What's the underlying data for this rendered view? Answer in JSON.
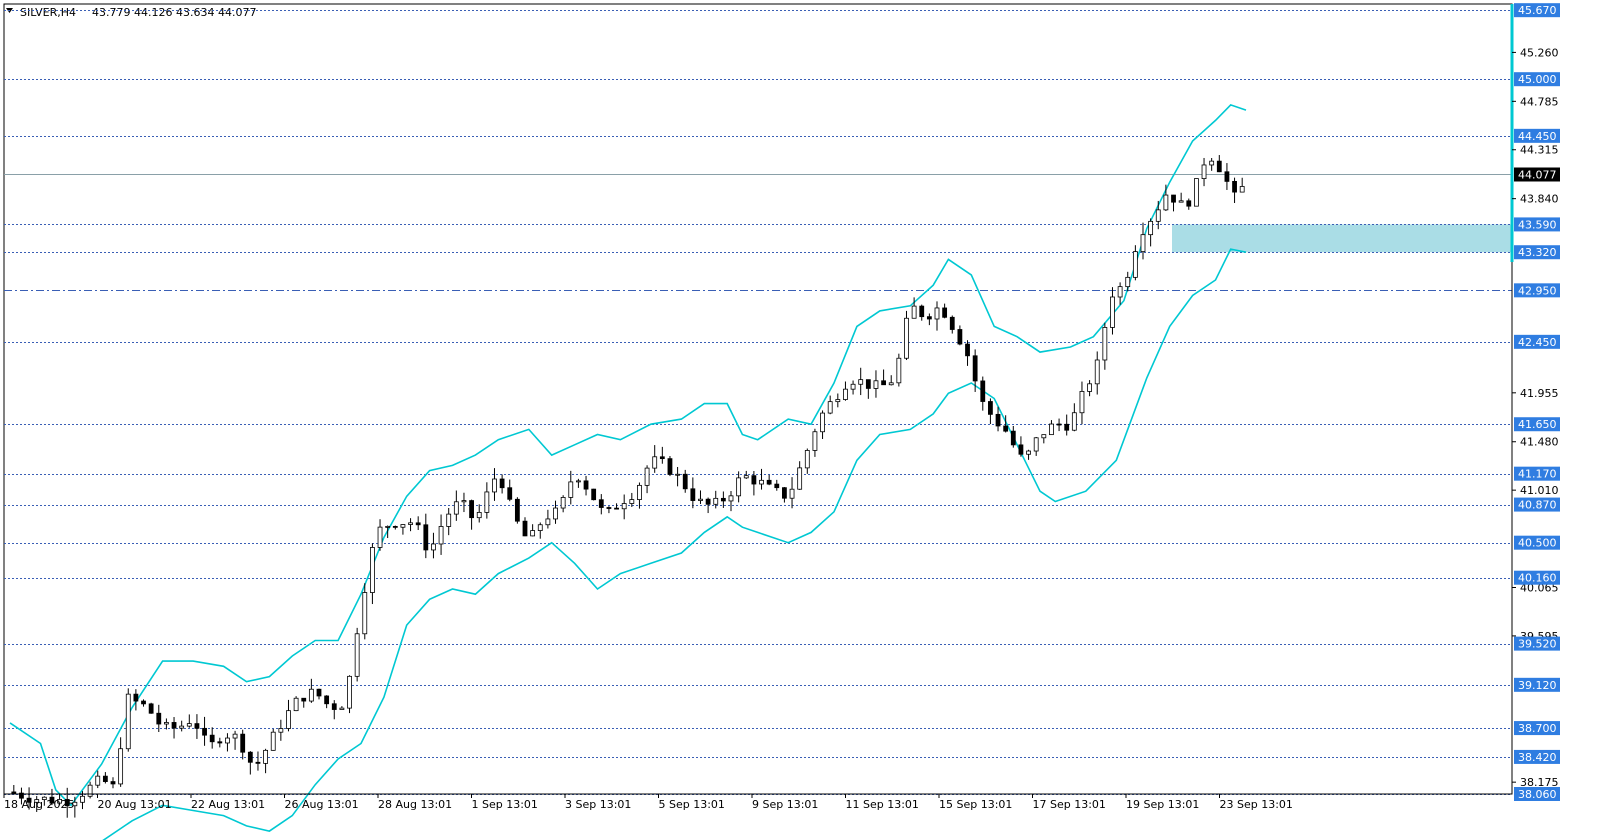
{
  "header": {
    "symbol": "SILVER,H4",
    "ohlc": "43.779 44.126 43.634 44.077"
  },
  "colors": {
    "band": "#00c8d2",
    "level": "#3a5fb5",
    "level_box": "#2f7de1",
    "zone": "#aadde6",
    "current_price_box": "#000000",
    "grid_frame": "#000000"
  },
  "chart_data": {
    "type": "candlestick",
    "instrument": "SILVER",
    "timeframe": "H4",
    "y_range": [
      38.06,
      45.73
    ],
    "price_ticks": [
      "45.260",
      "44.785",
      "44.315",
      "43.840",
      "41.955",
      "41.480",
      "41.010",
      "40.065",
      "39.595",
      "38.175"
    ],
    "x_tick_labels": [
      "18 Aug 2025",
      "20 Aug 13:01",
      "22 Aug 13:01",
      "26 Aug 13:01",
      "28 Aug 13:01",
      "1 Sep 13:01",
      "3 Sep 13:01",
      "5 Sep 13:01",
      "9 Sep 13:01",
      "11 Sep 13:01",
      "15 Sep 13:01",
      "17 Sep 13:01",
      "19 Sep 13:01",
      "23 Sep 13:01"
    ],
    "levels": [
      {
        "price": 45.67,
        "label": "45.670",
        "style": "dotted"
      },
      {
        "price": 45.0,
        "label": "45.000",
        "style": "dotted"
      },
      {
        "price": 44.45,
        "label": "44.450",
        "style": "dotted"
      },
      {
        "price": 43.59,
        "label": "43.590",
        "style": "dotted"
      },
      {
        "price": 43.32,
        "label": "43.320",
        "style": "dotted"
      },
      {
        "price": 42.95,
        "label": "42.950",
        "style": "dashdot"
      },
      {
        "price": 42.45,
        "label": "42.450",
        "style": "dotted"
      },
      {
        "price": 41.65,
        "label": "41.650",
        "style": "dotted"
      },
      {
        "price": 41.17,
        "label": "41.170",
        "style": "dotted"
      },
      {
        "price": 40.87,
        "label": "40.870",
        "style": "dotted"
      },
      {
        "price": 40.5,
        "label": "40.500",
        "style": "dotted"
      },
      {
        "price": 40.16,
        "label": "40.160",
        "style": "dotted"
      },
      {
        "price": 39.52,
        "label": "39.520",
        "style": "dotted"
      },
      {
        "price": 39.12,
        "label": "39.120",
        "style": "dotted"
      },
      {
        "price": 38.7,
        "label": "38.700",
        "style": "dotted"
      },
      {
        "price": 38.42,
        "label": "38.420",
        "style": "dotted"
      },
      {
        "price": 38.06,
        "label": "38.060",
        "style": "dotted"
      }
    ],
    "current_price": {
      "price": 44.077,
      "label": "44.077"
    },
    "zone": {
      "from": 43.32,
      "to": 43.59
    },
    "close_path": [
      [
        0,
        38.08
      ],
      [
        6,
        38.02
      ],
      [
        12,
        38.0
      ],
      [
        16,
        38.0
      ],
      [
        20,
        38.1
      ],
      [
        24,
        38.2
      ],
      [
        28,
        38.1
      ],
      [
        30,
        39.0
      ],
      [
        36,
        38.9
      ],
      [
        40,
        38.7
      ],
      [
        44,
        38.7
      ],
      [
        48,
        38.8
      ],
      [
        52,
        38.5
      ],
      [
        56,
        38.65
      ],
      [
        60,
        38.6
      ],
      [
        64,
        38.3
      ],
      [
        68,
        38.55
      ],
      [
        72,
        38.8
      ],
      [
        76,
        39.0
      ],
      [
        80,
        39.05
      ],
      [
        84,
        38.9
      ],
      [
        88,
        38.95
      ],
      [
        92,
        39.9
      ],
      [
        96,
        40.6
      ],
      [
        100,
        40.7
      ],
      [
        106,
        40.7
      ],
      [
        110,
        40.4
      ],
      [
        114,
        40.75
      ],
      [
        118,
        40.9
      ],
      [
        122,
        40.7
      ],
      [
        126,
        41.05
      ],
      [
        128,
        41.2
      ],
      [
        132,
        40.75
      ],
      [
        136,
        40.5
      ],
      [
        140,
        40.75
      ],
      [
        144,
        40.8
      ],
      [
        148,
        41.2
      ],
      [
        152,
        41.0
      ],
      [
        156,
        40.75
      ],
      [
        160,
        40.9
      ],
      [
        164,
        41.0
      ],
      [
        168,
        41.3
      ],
      [
        172,
        41.25
      ],
      [
        176,
        41.1
      ],
      [
        180,
        40.9
      ],
      [
        184,
        40.85
      ],
      [
        188,
        40.95
      ],
      [
        192,
        41.15
      ],
      [
        196,
        41.1
      ],
      [
        200,
        41.0
      ],
      [
        204,
        40.95
      ],
      [
        208,
        41.3
      ],
      [
        212,
        41.7
      ],
      [
        216,
        41.9
      ],
      [
        220,
        42.1
      ],
      [
        224,
        42.05
      ],
      [
        228,
        42.0
      ],
      [
        232,
        42.1
      ],
      [
        236,
        42.8
      ],
      [
        240,
        42.7
      ],
      [
        244,
        42.8
      ],
      [
        248,
        42.55
      ],
      [
        252,
        42.25
      ],
      [
        254,
        41.9
      ],
      [
        258,
        41.7
      ],
      [
        262,
        41.55
      ],
      [
        264,
        41.35
      ],
      [
        266,
        41.3
      ],
      [
        270,
        41.55
      ],
      [
        274,
        41.65
      ],
      [
        278,
        41.65
      ],
      [
        282,
        42.0
      ],
      [
        286,
        42.3
      ],
      [
        288,
        42.9
      ],
      [
        292,
        43.0
      ],
      [
        296,
        43.5
      ],
      [
        300,
        43.7
      ],
      [
        304,
        43.95
      ],
      [
        306,
        43.75
      ],
      [
        310,
        43.85
      ],
      [
        312,
        44.1
      ],
      [
        314,
        44.3
      ],
      [
        316,
        44.2
      ],
      [
        318,
        44.1
      ],
      [
        320,
        43.9
      ],
      [
        322,
        43.8
      ],
      [
        324,
        44.077
      ]
    ],
    "bollinger": {
      "upper": [
        [
          0,
          38.75
        ],
        [
          8,
          38.55
        ],
        [
          12,
          38.1
        ],
        [
          16,
          37.95
        ],
        [
          24,
          38.35
        ],
        [
          32,
          38.9
        ],
        [
          40,
          39.35
        ],
        [
          48,
          39.35
        ],
        [
          56,
          39.3
        ],
        [
          62,
          39.15
        ],
        [
          68,
          39.2
        ],
        [
          74,
          39.4
        ],
        [
          80,
          39.55
        ],
        [
          86,
          39.55
        ],
        [
          92,
          40.0
        ],
        [
          98,
          40.55
        ],
        [
          104,
          40.95
        ],
        [
          110,
          41.2
        ],
        [
          116,
          41.25
        ],
        [
          122,
          41.35
        ],
        [
          128,
          41.5
        ],
        [
          136,
          41.6
        ],
        [
          142,
          41.35
        ],
        [
          148,
          41.45
        ],
        [
          154,
          41.55
        ],
        [
          160,
          41.5
        ],
        [
          168,
          41.65
        ],
        [
          176,
          41.7
        ],
        [
          182,
          41.85
        ],
        [
          188,
          41.85
        ],
        [
          192,
          41.55
        ],
        [
          196,
          41.5
        ],
        [
          204,
          41.7
        ],
        [
          210,
          41.65
        ],
        [
          216,
          42.05
        ],
        [
          222,
          42.6
        ],
        [
          228,
          42.75
        ],
        [
          236,
          42.8
        ],
        [
          242,
          43.0
        ],
        [
          246,
          43.25
        ],
        [
          252,
          43.1
        ],
        [
          258,
          42.6
        ],
        [
          264,
          42.5
        ],
        [
          270,
          42.35
        ],
        [
          278,
          42.4
        ],
        [
          284,
          42.5
        ],
        [
          292,
          42.85
        ],
        [
          298,
          43.55
        ],
        [
          304,
          44.0
        ],
        [
          310,
          44.4
        ],
        [
          316,
          44.6
        ],
        [
          320,
          44.75
        ],
        [
          324,
          44.7
        ]
      ],
      "middle_unused": [],
      "lower": [
        [
          24,
          37.6
        ],
        [
          32,
          37.8
        ],
        [
          40,
          37.95
        ],
        [
          48,
          37.9
        ],
        [
          56,
          37.85
        ],
        [
          62,
          37.75
        ],
        [
          68,
          37.7
        ],
        [
          74,
          37.85
        ],
        [
          80,
          38.15
        ],
        [
          86,
          38.4
        ],
        [
          92,
          38.55
        ],
        [
          98,
          39.0
        ],
        [
          104,
          39.7
        ],
        [
          110,
          39.95
        ],
        [
          116,
          40.05
        ],
        [
          122,
          40.0
        ],
        [
          128,
          40.2
        ],
        [
          136,
          40.35
        ],
        [
          142,
          40.5
        ],
        [
          148,
          40.3
        ],
        [
          154,
          40.05
        ],
        [
          160,
          40.2
        ],
        [
          168,
          40.3
        ],
        [
          176,
          40.4
        ],
        [
          182,
          40.6
        ],
        [
          188,
          40.75
        ],
        [
          192,
          40.65
        ],
        [
          196,
          40.6
        ],
        [
          204,
          40.5
        ],
        [
          210,
          40.6
        ],
        [
          216,
          40.8
        ],
        [
          222,
          41.3
        ],
        [
          228,
          41.55
        ],
        [
          236,
          41.6
        ],
        [
          242,
          41.75
        ],
        [
          246,
          41.95
        ],
        [
          252,
          42.05
        ],
        [
          258,
          41.9
        ],
        [
          264,
          41.45
        ],
        [
          270,
          41.0
        ],
        [
          274,
          40.9
        ],
        [
          282,
          41.0
        ],
        [
          290,
          41.3
        ],
        [
          298,
          42.1
        ],
        [
          304,
          42.6
        ],
        [
          310,
          42.9
        ],
        [
          316,
          43.05
        ],
        [
          320,
          43.35
        ],
        [
          324,
          43.32
        ]
      ]
    }
  }
}
